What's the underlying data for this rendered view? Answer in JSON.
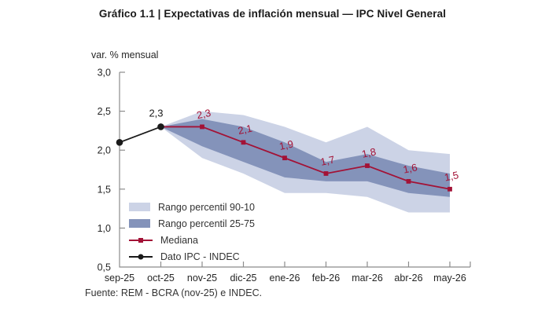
{
  "chart_data": {
    "type": "line",
    "title": "Gráfico 1.1 | Expectativas de inflación mensual — IPC Nivel General",
    "ylabel": "var. % mensual",
    "xlabel": "",
    "source": "Fuente: REM - BCRA (nov-25) e INDEC.",
    "grid": false,
    "legend_position": "lower-left-inside",
    "axis_color": "#8c8c8c",
    "categories": [
      "sep-25",
      "oct-25",
      "nov-25",
      "dic-25",
      "ene-26",
      "feb-26",
      "mar-26",
      "abr-26",
      "may-26"
    ],
    "ylim": [
      0.5,
      3.0
    ],
    "ytick_step": 0.5,
    "bands": [
      {
        "name": "Rango percentil 90-10",
        "color": "#ccd3e6",
        "upper": [
          null,
          2.3,
          2.5,
          2.45,
          2.3,
          2.1,
          2.3,
          2.0,
          1.95
        ],
        "lower": [
          null,
          2.3,
          1.9,
          1.7,
          1.45,
          1.45,
          1.4,
          1.2,
          1.2
        ]
      },
      {
        "name": "Rango percentil 25-75",
        "color": "#8493ba",
        "upper": [
          null,
          2.3,
          2.4,
          2.3,
          2.1,
          1.85,
          1.95,
          1.8,
          1.7
        ],
        "lower": [
          null,
          2.3,
          2.05,
          1.85,
          1.65,
          1.6,
          1.6,
          1.45,
          1.4
        ]
      }
    ],
    "series": [
      {
        "name": "Mediana",
        "color": "#a31236",
        "marker": "square",
        "values": [
          null,
          2.3,
          2.3,
          2.1,
          1.9,
          1.7,
          1.8,
          1.6,
          1.5
        ],
        "point_labels": [
          null,
          null,
          "2,3",
          "2,1",
          "1,9",
          "1,7",
          "1,8",
          "1,6",
          "1,5"
        ],
        "label_color": "#a31236",
        "label_style": {
          "dx": 3,
          "dy": -12,
          "rotate": -12
        }
      },
      {
        "name": "Dato IPC - INDEC",
        "color": "#1a1a1a",
        "marker": "circle",
        "values": [
          2.1,
          2.3,
          null,
          null,
          null,
          null,
          null,
          null,
          null
        ],
        "point_labels": [
          null,
          "2,3",
          null,
          null,
          null,
          null,
          null,
          null,
          null
        ],
        "label_color": "#1a1a1a",
        "label_style": {
          "dx": -6,
          "dy": -13,
          "rotate": 0
        }
      }
    ]
  },
  "legend": {
    "note": "labels bound from chart_data band/series names"
  }
}
